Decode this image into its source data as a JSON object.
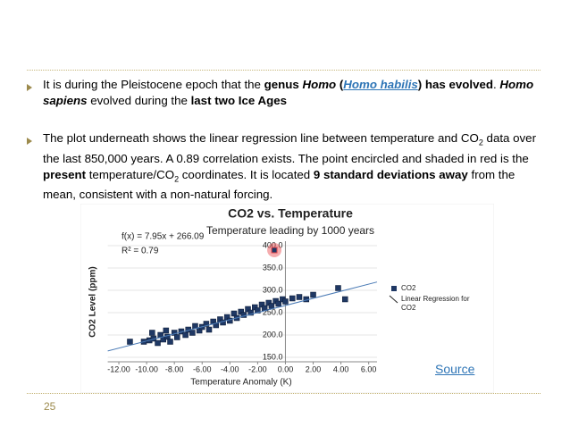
{
  "slide": {
    "bullets": [
      {
        "runs": [
          {
            "text": "It is during the Pleistocene epoch that the "
          },
          {
            "text": "genus ",
            "style": "bold"
          },
          {
            "text": "Homo",
            "style": "bold-italic"
          },
          {
            "text": " (",
            "style": "bold"
          },
          {
            "text": "Homo habilis",
            "style": "link"
          },
          {
            "text": ") has evolved",
            "style": "bold"
          },
          {
            "text": ". "
          },
          {
            "text": "Homo sapiens",
            "style": "bold-italic"
          },
          {
            "text": " evolved during the "
          },
          {
            "text": "last two Ice Ages",
            "style": "bold"
          }
        ]
      },
      {
        "runs": [
          {
            "text": "The plot underneath shows the linear regression line between temperature and CO"
          },
          {
            "text": "2",
            "style": "sub"
          },
          {
            "text": " data over the last 850,000 years.  A 0.89 correlation exists. The point encircled and shaded in red is the "
          },
          {
            "text": "present",
            "style": "bold"
          },
          {
            "text": " temperature/CO"
          },
          {
            "text": "2",
            "style": "sub"
          },
          {
            "text": " coordinates. It is located "
          },
          {
            "text": "9 standard deviations away",
            "style": "bold"
          },
          {
            "text": " from the mean, consistent with a non-natural forcing."
          }
        ]
      }
    ],
    "source_link": "Source",
    "page_number": "25"
  },
  "chart_data": {
    "type": "scatter",
    "title": "CO2 vs. Temperature",
    "subtitle": "Temperature leading by 1000 years",
    "x_label": "Temperature Anomaly (K)",
    "y_label": "CO2 Level (ppm)",
    "annotations": [
      "f(x) = 7.95x + 266.09",
      "R² = 0.79"
    ],
    "xlim": [
      -12.8,
      6.6
    ],
    "ylim": [
      140,
      410
    ],
    "xticks": [
      {
        "value": -12,
        "label": "-12.00"
      },
      {
        "value": -10,
        "label": "-10.00"
      },
      {
        "value": -8,
        "label": "-8.00"
      },
      {
        "value": -6,
        "label": "-6.00"
      },
      {
        "value": -4,
        "label": "-4.00"
      },
      {
        "value": -2,
        "label": "-2.00"
      },
      {
        "value": 0,
        "label": "0.00"
      },
      {
        "value": 2,
        "label": "2.00"
      },
      {
        "value": 4,
        "label": "4.00"
      },
      {
        "value": 6,
        "label": "6.00"
      }
    ],
    "yticks": [
      {
        "value": 150,
        "label": "150.0"
      },
      {
        "value": 200,
        "label": "200.0"
      },
      {
        "value": 250,
        "label": "250.0"
      },
      {
        "value": 300,
        "label": "300.0"
      },
      {
        "value": 350,
        "label": "350.0"
      },
      {
        "value": 400,
        "label": "400.0"
      }
    ],
    "grid": true,
    "series": [
      {
        "name": "CO2",
        "color": "#1f3864",
        "mode": "markers",
        "x": [
          -10.2,
          -9.8,
          -9.5,
          -9.2,
          -9.0,
          -8.8,
          -8.5,
          -8.3,
          -8.0,
          -7.8,
          -7.5,
          -7.2,
          -7.0,
          -6.7,
          -6.5,
          -6.2,
          -6.0,
          -5.7,
          -5.5,
          -5.2,
          -5.0,
          -4.7,
          -4.5,
          -4.2,
          -4.0,
          -3.7,
          -3.5,
          -3.2,
          -3.0,
          -2.7,
          -2.5,
          -2.2,
          -2.0,
          -1.7,
          -1.5,
          -1.2,
          -1.0,
          -0.7,
          -0.5,
          -0.2,
          0.0,
          0.5,
          1.0,
          1.5,
          2.0,
          3.8,
          4.3,
          -11.2,
          -9.6,
          -8.6
        ],
        "values": [
          185,
          188,
          192,
          182,
          200,
          190,
          196,
          185,
          205,
          195,
          208,
          200,
          212,
          205,
          220,
          210,
          218,
          225,
          212,
          230,
          222,
          235,
          228,
          240,
          232,
          248,
          238,
          252,
          245,
          258,
          250,
          262,
          255,
          268,
          260,
          272,
          265,
          276,
          270,
          280,
          275,
          282,
          285,
          280,
          290,
          305,
          280,
          185,
          205,
          210
        ]
      },
      {
        "name": "Linear Regression for CO2",
        "color": "#4a7ab5",
        "mode": "line",
        "x": [
          -12.8,
          6.6
        ],
        "values": [
          164.3,
          318.6
        ]
      }
    ],
    "highlight": {
      "x": -0.8,
      "value": 390,
      "color": "#e8474c"
    }
  }
}
